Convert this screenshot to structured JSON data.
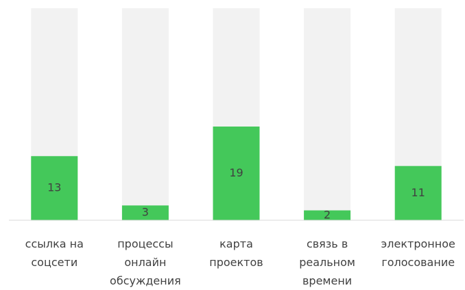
{
  "chart_data": {
    "type": "bar",
    "categories": [
      "ссылка на соцсети",
      "процессы онлайн обсуждения",
      "карта проектов",
      "связь в реальном времени",
      "электронное голосование"
    ],
    "values": [
      13,
      3,
      19,
      2,
      11
    ],
    "color": "#44c85a",
    "background_color": "#f2f2f2",
    "ylim": [
      0,
      43
    ]
  }
}
